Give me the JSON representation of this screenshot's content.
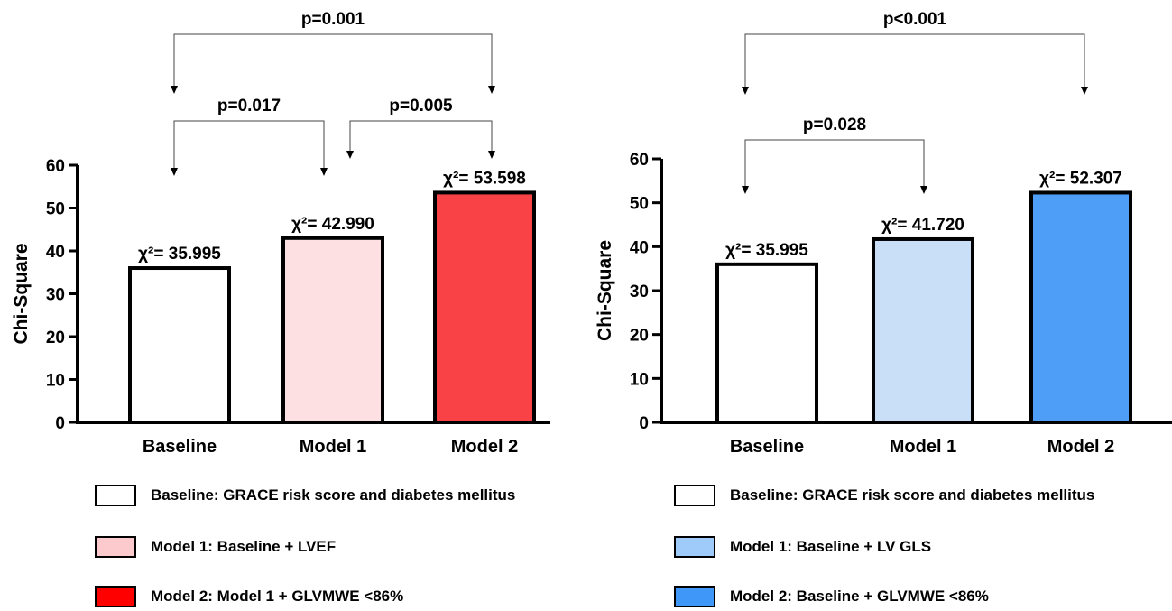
{
  "chart_data": [
    {
      "type": "bar",
      "categories": [
        "Baseline",
        "Model 1",
        "Model 2"
      ],
      "values": [
        35.995,
        42.99,
        53.598
      ],
      "bar_labels": [
        "χ²= 35.995",
        "χ²= 42.990",
        "χ²= 53.598"
      ],
      "bar_colors": [
        "#ffffff",
        "#fde0e2",
        "#f84246"
      ],
      "ylabel": "Chi-Square",
      "xlabel": "",
      "ylim": [
        0,
        60
      ],
      "yticks": [
        0,
        10,
        20,
        30,
        40,
        50,
        60
      ],
      "comparisons": [
        {
          "from": "Baseline",
          "to": "Model 2",
          "label": "p=0.001"
        },
        {
          "from": "Baseline",
          "to": "Model 1",
          "label": "p=0.017"
        },
        {
          "from": "Model 1",
          "to": "Model 2",
          "label": "p=0.005"
        }
      ],
      "legend": [
        {
          "label": "Baseline: GRACE risk score and diabetes mellitus",
          "color": "#ffffff"
        },
        {
          "label": "Model 1: Baseline + LVEF",
          "color": "#fcc9cc"
        },
        {
          "label": "Model 2: Model 1 + GLVMWE <86%",
          "color": "#ff0000"
        }
      ]
    },
    {
      "type": "bar",
      "categories": [
        "Baseline",
        "Model 1",
        "Model 2"
      ],
      "values": [
        35.995,
        41.72,
        52.307
      ],
      "bar_labels": [
        "χ²= 35.995",
        "χ²= 41.720",
        "χ²= 52.307"
      ],
      "bar_colors": [
        "#ffffff",
        "#c9def7",
        "#4e9df7"
      ],
      "ylabel": "Chi-Square",
      "xlabel": "",
      "ylim": [
        0,
        60
      ],
      "yticks": [
        0,
        10,
        20,
        30,
        40,
        50,
        60
      ],
      "comparisons": [
        {
          "from": "Baseline",
          "to": "Model 2",
          "label": "p<0.001"
        },
        {
          "from": "Baseline",
          "to": "Model 1",
          "label": "p=0.028"
        }
      ],
      "legend": [
        {
          "label": "Baseline: GRACE risk score and diabetes mellitus",
          "color": "#ffffff"
        },
        {
          "label": "Model 1: Baseline + LV GLS",
          "color": "#9fcbfa"
        },
        {
          "label": "Model 2: Baseline + GLVMWE <86%",
          "color": "#3f97f7"
        }
      ]
    }
  ]
}
